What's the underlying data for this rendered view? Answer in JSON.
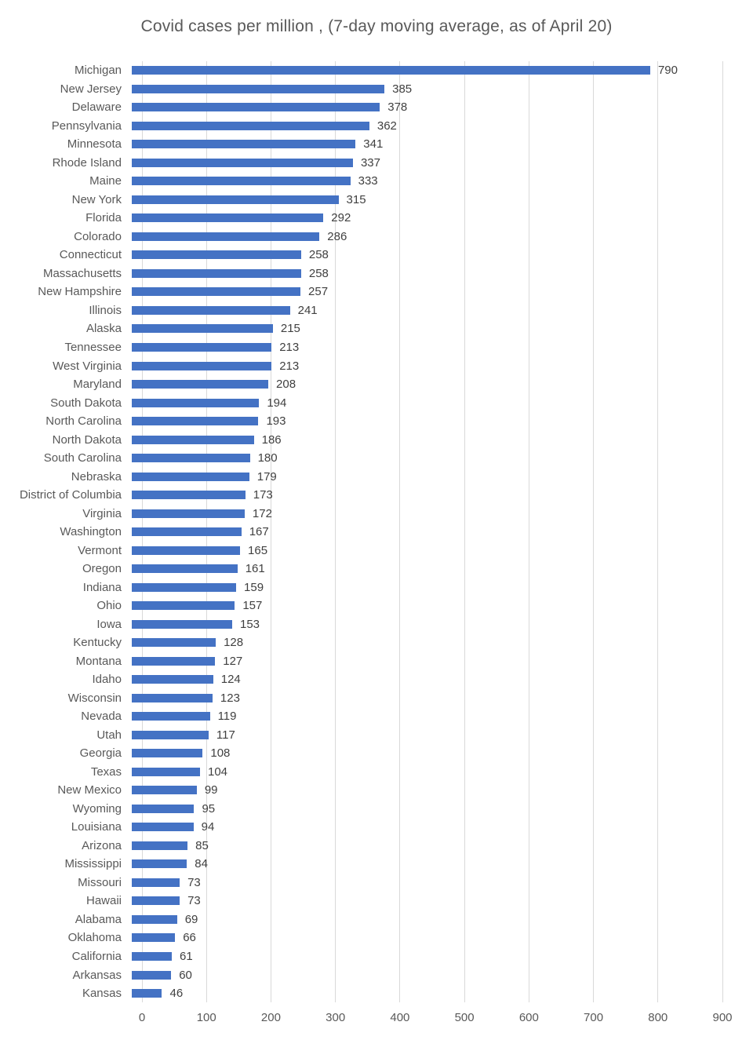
{
  "colors": {
    "bar": "#4472C4",
    "gridline": "#D9D9D9",
    "title_text": "#595959",
    "axis_text": "#595959",
    "value_text": "#404040"
  },
  "chart_data": {
    "type": "bar",
    "orientation": "horizontal",
    "title": "Covid cases per million , (7-day moving average, as of April 20)",
    "xlabel": "",
    "ylabel": "",
    "xlim": [
      0,
      900
    ],
    "x_ticks": [
      0,
      100,
      200,
      300,
      400,
      500,
      600,
      700,
      800,
      900
    ],
    "grid": true,
    "legend": false,
    "data_labels": true,
    "categories": [
      "Michigan",
      "New Jersey",
      "Delaware",
      "Pennsylvania",
      "Minnesota",
      "Rhode Island",
      "Maine",
      "New York",
      "Florida",
      "Colorado",
      "Connecticut",
      "Massachusetts",
      "New Hampshire",
      "Illinois",
      "Alaska",
      "Tennessee",
      "West Virginia",
      "Maryland",
      "South Dakota",
      "North Carolina",
      "North Dakota",
      "South Carolina",
      "Nebraska",
      "District of Columbia",
      "Virginia",
      "Washington",
      "Vermont",
      "Oregon",
      "Indiana",
      "Ohio",
      "Iowa",
      "Kentucky",
      "Montana",
      "Idaho",
      "Wisconsin",
      "Nevada",
      "Utah",
      "Georgia",
      "Texas",
      "New Mexico",
      "Wyoming",
      "Louisiana",
      "Arizona",
      "Mississippi",
      "Missouri",
      "Hawaii",
      "Alabama",
      "Oklahoma",
      "California",
      "Arkansas",
      "Kansas"
    ],
    "values": [
      790,
      385,
      378,
      362,
      341,
      337,
      333,
      315,
      292,
      286,
      258,
      258,
      257,
      241,
      215,
      213,
      213,
      208,
      194,
      193,
      186,
      180,
      179,
      173,
      172,
      167,
      165,
      161,
      159,
      157,
      153,
      128,
      127,
      124,
      123,
      119,
      117,
      108,
      104,
      99,
      95,
      94,
      85,
      84,
      73,
      73,
      69,
      66,
      61,
      60,
      46
    ]
  }
}
